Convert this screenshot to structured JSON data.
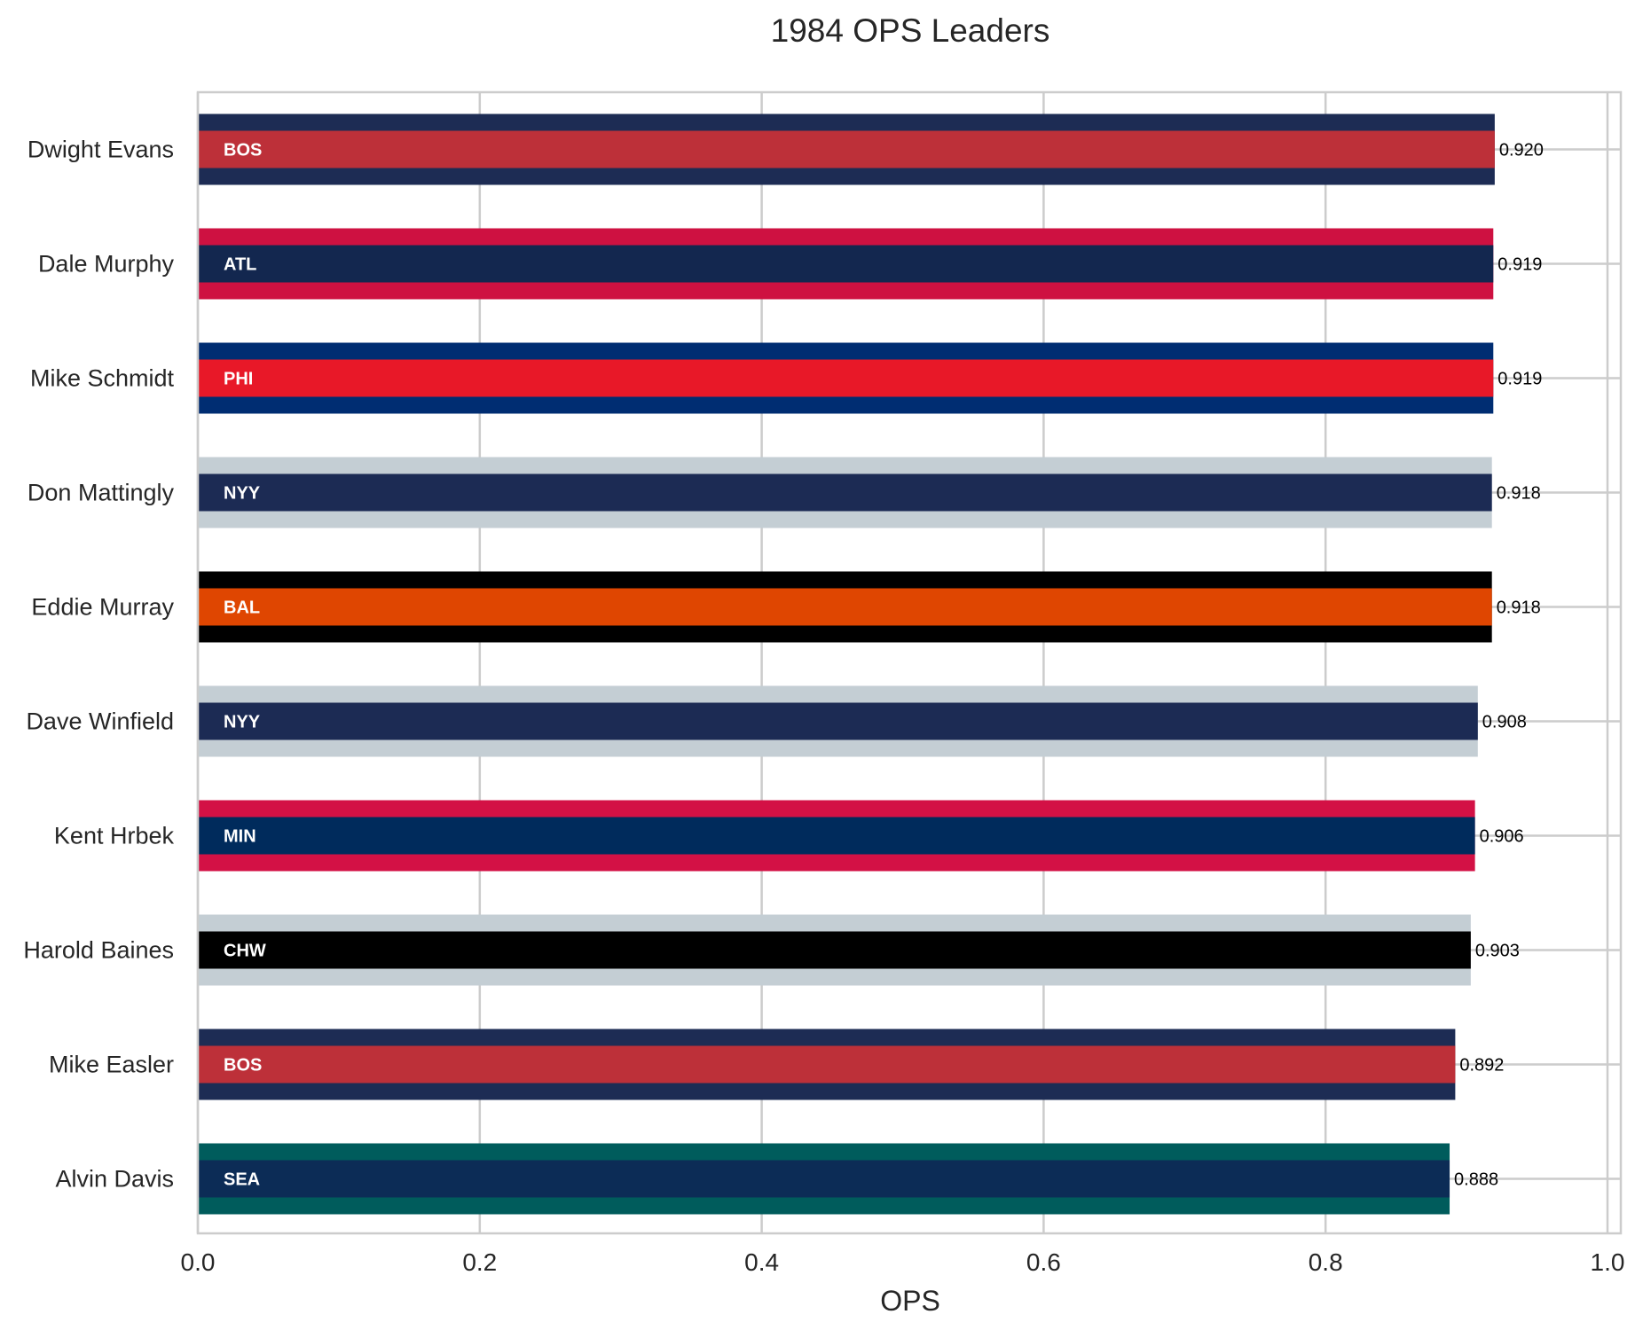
{
  "chart_data": {
    "type": "bar",
    "orientation": "horizontal",
    "title": "1984 OPS Leaders",
    "xlabel": "OPS",
    "ylabel": "",
    "xlim": [
      0.0,
      1.0
    ],
    "x_ticks": [
      "0.0",
      "0.2",
      "0.4",
      "0.6",
      "0.8",
      "1.0"
    ],
    "grid": true,
    "categories": [
      "Dwight Evans",
      "Dale Murphy",
      "Mike Schmidt",
      "Don Mattingly",
      "Eddie Murray",
      "Dave Winfield",
      "Kent Hrbek",
      "Harold Baines",
      "Mike Easler",
      "Alvin Davis"
    ],
    "values": [
      0.92,
      0.919,
      0.919,
      0.918,
      0.918,
      0.908,
      0.906,
      0.903,
      0.892,
      0.888
    ],
    "value_labels": [
      "0.920",
      "0.919",
      "0.919",
      "0.918",
      "0.918",
      "0.908",
      "0.906",
      "0.903",
      "0.892",
      "0.888"
    ],
    "teams": [
      "BOS",
      "ATL",
      "PHI",
      "NYY",
      "BAL",
      "NYY",
      "MIN",
      "CHW",
      "BOS",
      "SEA"
    ],
    "team_colors": {
      "BOS": {
        "primary": "#BD3039",
        "secondary": "#1D2C54"
      },
      "ATL": {
        "primary": "#13274F",
        "secondary": "#CE1141"
      },
      "PHI": {
        "primary": "#E81828",
        "secondary": "#002D72"
      },
      "NYY": {
        "primary": "#1C2B54",
        "secondary": "#C4CED4"
      },
      "BAL": {
        "primary": "#DF4601",
        "secondary": "#000000"
      },
      "MIN": {
        "primary": "#002B5C",
        "secondary": "#D31145"
      },
      "CHW": {
        "primary": "#000000",
        "secondary": "#C4CED4"
      },
      "SEA": {
        "primary": "#0C2C56",
        "secondary": "#005C5C"
      }
    },
    "grid_color": "#CCCCCC",
    "text_color": "#262626"
  }
}
